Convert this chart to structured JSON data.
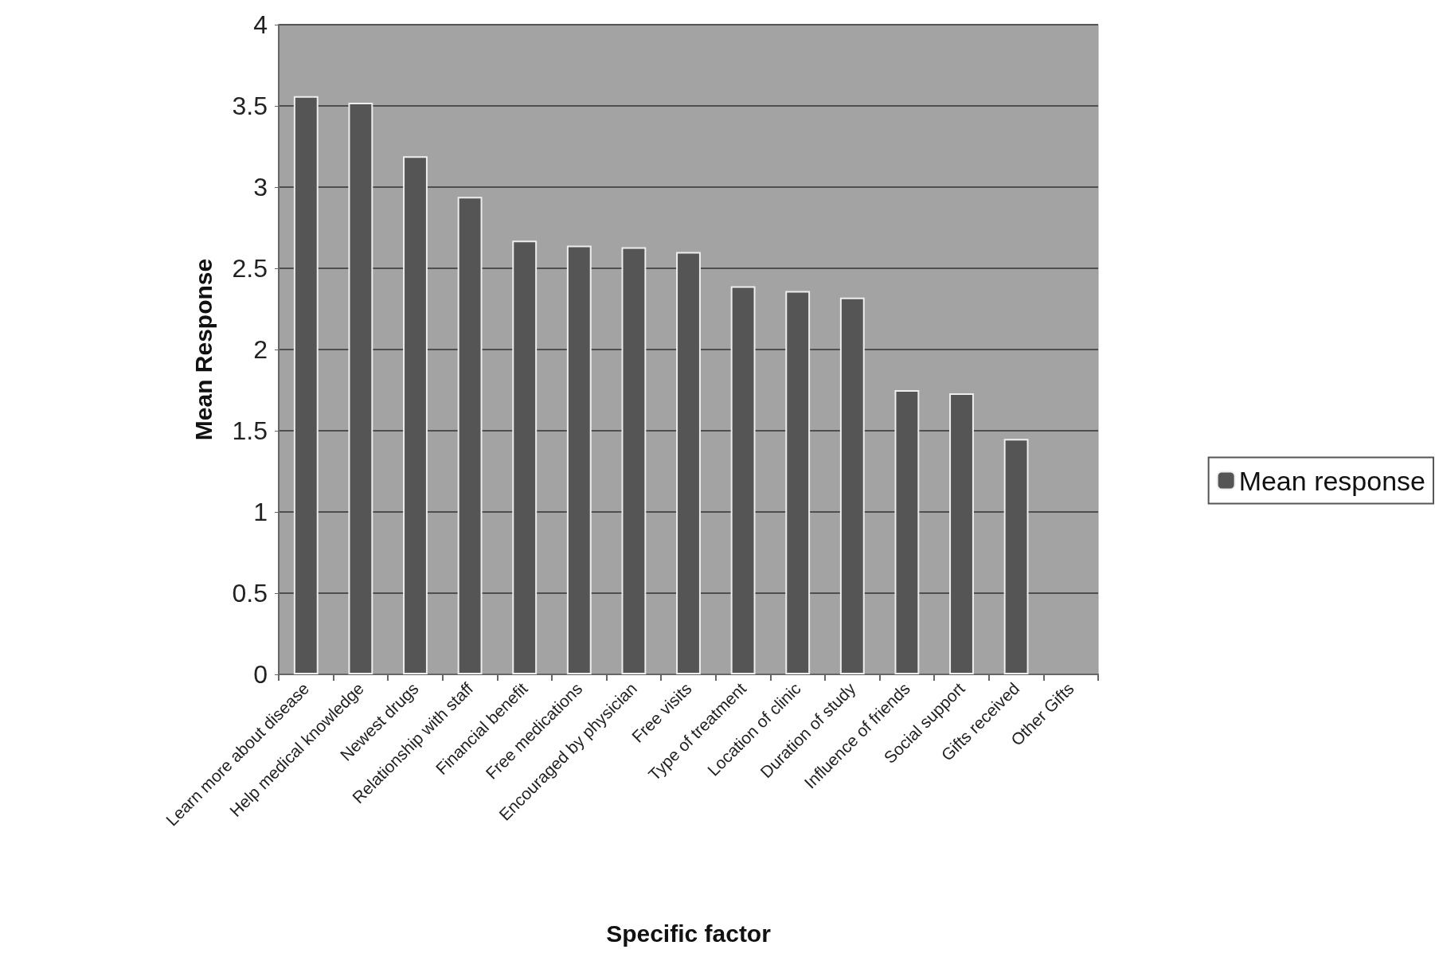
{
  "chart_data": {
    "type": "bar",
    "xlabel": "Specific factor",
    "ylabel": "Mean Response",
    "categories": [
      "Learn more about disease",
      "Help medical knowledge",
      "Newest drugs",
      "Relationship with staff",
      "Financial benefit",
      "Free medications",
      "Encouraged by physician",
      "Free visits",
      "Type of treatment",
      "Location of clinic",
      "Duration of study",
      "Influence of friends",
      "Social support",
      "Gifts received",
      "Other Gifts"
    ],
    "series": [
      {
        "name": "Mean response",
        "color": "#555555",
        "values": [
          3.56,
          3.52,
          3.19,
          2.94,
          2.67,
          2.64,
          2.63,
          2.6,
          2.39,
          2.36,
          2.32,
          1.75,
          1.73,
          1.45,
          null
        ]
      }
    ],
    "ylim": [
      0,
      4
    ],
    "yticks": [
      0,
      0.5,
      1,
      1.5,
      2,
      2.5,
      3,
      3.5,
      4
    ],
    "grid": "y",
    "legend": "right"
  }
}
